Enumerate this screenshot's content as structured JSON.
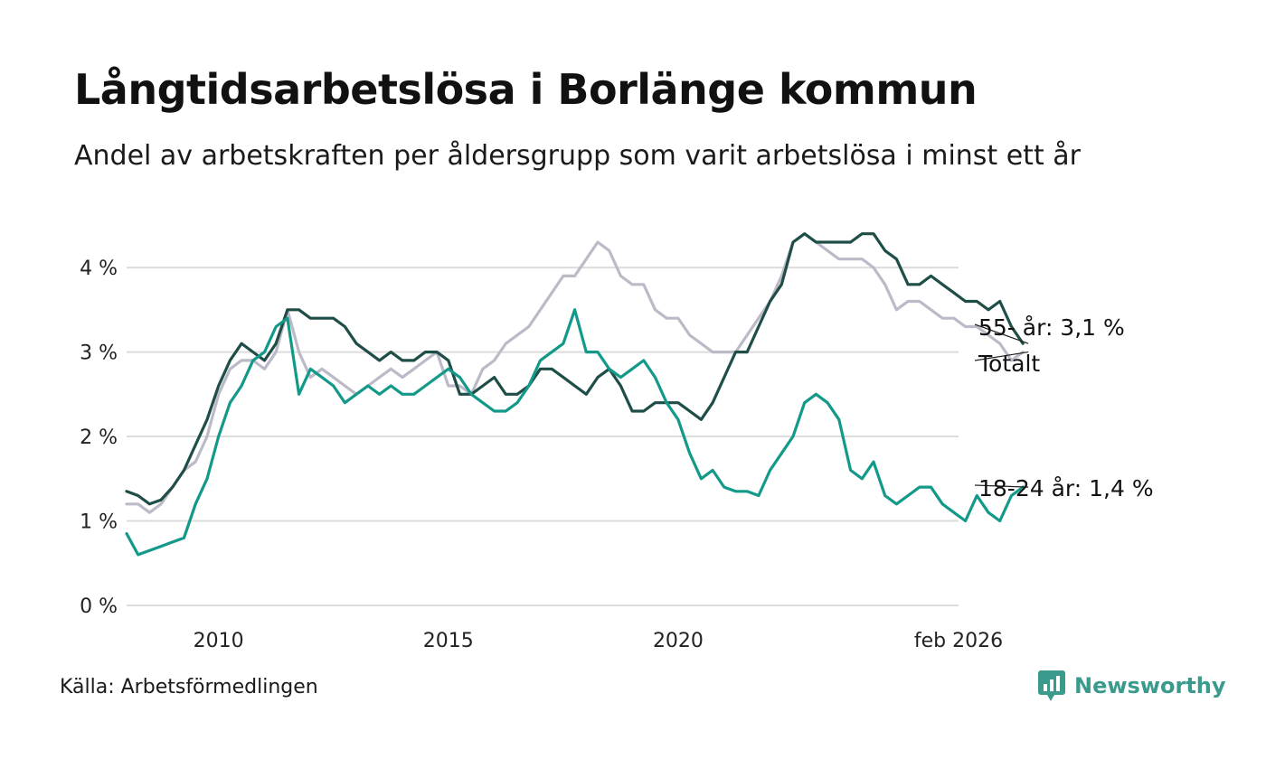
{
  "title": "Långtidsarbetslösa i Borlänge kommun",
  "subtitle": "Andel av arbetskraften per åldersgrupp som varit arbetslösa i minst ett år",
  "source": "Källa: Arbetsförmedlingen",
  "brand": "Newsworthy",
  "chart_data": {
    "type": "line",
    "x_start": 2008.0,
    "x_step": 0.25,
    "xlim": [
      2008.0,
      2026.1
    ],
    "ylim": [
      0,
      4.6
    ],
    "y_ticks": [
      0,
      1,
      2,
      3,
      4
    ],
    "y_tick_labels": [
      "0 %",
      "1 %",
      "2 %",
      "3 %",
      "4 %"
    ],
    "x_ticks": [
      2010,
      2015,
      2020,
      2026.1
    ],
    "x_tick_labels": [
      "2010",
      "2015",
      "2020",
      "feb 2026"
    ],
    "colors": {
      "totalt": "#bdbac8",
      "age55": "#1f4d47",
      "age1824": "#13998a",
      "grid": "#dcdcdc"
    },
    "series": [
      {
        "name": "Totalt",
        "key": "totalt",
        "label": "Totalt",
        "values": [
          1.2,
          1.2,
          1.1,
          1.2,
          1.4,
          1.6,
          1.7,
          2.0,
          2.5,
          2.8,
          2.9,
          2.9,
          2.8,
          3.0,
          3.5,
          3.0,
          2.7,
          2.8,
          2.7,
          2.6,
          2.5,
          2.6,
          2.7,
          2.8,
          2.7,
          2.8,
          2.9,
          3.0,
          2.6,
          2.6,
          2.5,
          2.8,
          2.9,
          3.1,
          3.2,
          3.3,
          3.5,
          3.7,
          3.9,
          3.9,
          4.1,
          4.3,
          4.2,
          3.9,
          3.8,
          3.8,
          3.5,
          3.4,
          3.4,
          3.2,
          3.1,
          3.0,
          3.0,
          3.0,
          3.2,
          3.4,
          3.6,
          3.9,
          4.3,
          4.4,
          4.3,
          4.2,
          4.1,
          4.1,
          4.1,
          4.0,
          3.8,
          3.5,
          3.6,
          3.6,
          3.5,
          3.4,
          3.4,
          3.3,
          3.3,
          3.2,
          3.1,
          2.9,
          3.0
        ]
      },
      {
        "name": "55- år",
        "key": "age55",
        "label": "55- år: 3,1 %",
        "values": [
          1.35,
          1.3,
          1.2,
          1.25,
          1.4,
          1.6,
          1.9,
          2.2,
          2.6,
          2.9,
          3.1,
          3.0,
          2.9,
          3.1,
          3.5,
          3.5,
          3.4,
          3.4,
          3.4,
          3.3,
          3.1,
          3.0,
          2.9,
          3.0,
          2.9,
          2.9,
          3.0,
          3.0,
          2.9,
          2.5,
          2.5,
          2.6,
          2.7,
          2.5,
          2.5,
          2.6,
          2.8,
          2.8,
          2.7,
          2.6,
          2.5,
          2.7,
          2.8,
          2.6,
          2.3,
          2.3,
          2.4,
          2.4,
          2.4,
          2.3,
          2.2,
          2.4,
          2.7,
          3.0,
          3.0,
          3.3,
          3.6,
          3.8,
          4.3,
          4.4,
          4.3,
          4.3,
          4.3,
          4.3,
          4.4,
          4.4,
          4.2,
          4.1,
          3.8,
          3.8,
          3.9,
          3.8,
          3.7,
          3.6,
          3.6,
          3.5,
          3.6,
          3.3,
          3.1
        ]
      },
      {
        "name": "18-24 år",
        "key": "age1824",
        "label": "18-24 år: 1,4 %",
        "values": [
          0.85,
          0.6,
          0.65,
          0.7,
          0.75,
          0.8,
          1.2,
          1.5,
          2.0,
          2.4,
          2.6,
          2.9,
          3.0,
          3.3,
          3.4,
          2.5,
          2.8,
          2.7,
          2.6,
          2.4,
          2.5,
          2.6,
          2.5,
          2.6,
          2.5,
          2.5,
          2.6,
          2.7,
          2.8,
          2.7,
          2.5,
          2.4,
          2.3,
          2.3,
          2.4,
          2.6,
          2.9,
          3.0,
          3.1,
          3.5,
          3.0,
          3.0,
          2.8,
          2.7,
          2.8,
          2.9,
          2.7,
          2.4,
          2.2,
          1.8,
          1.5,
          1.6,
          1.4,
          1.35,
          1.35,
          1.3,
          1.6,
          1.8,
          2.0,
          2.4,
          2.5,
          2.4,
          2.2,
          1.6,
          1.5,
          1.7,
          1.3,
          1.2,
          1.3,
          1.4,
          1.4,
          1.2,
          1.1,
          1.0,
          1.3,
          1.1,
          1.0,
          1.3,
          1.4
        ]
      }
    ]
  }
}
